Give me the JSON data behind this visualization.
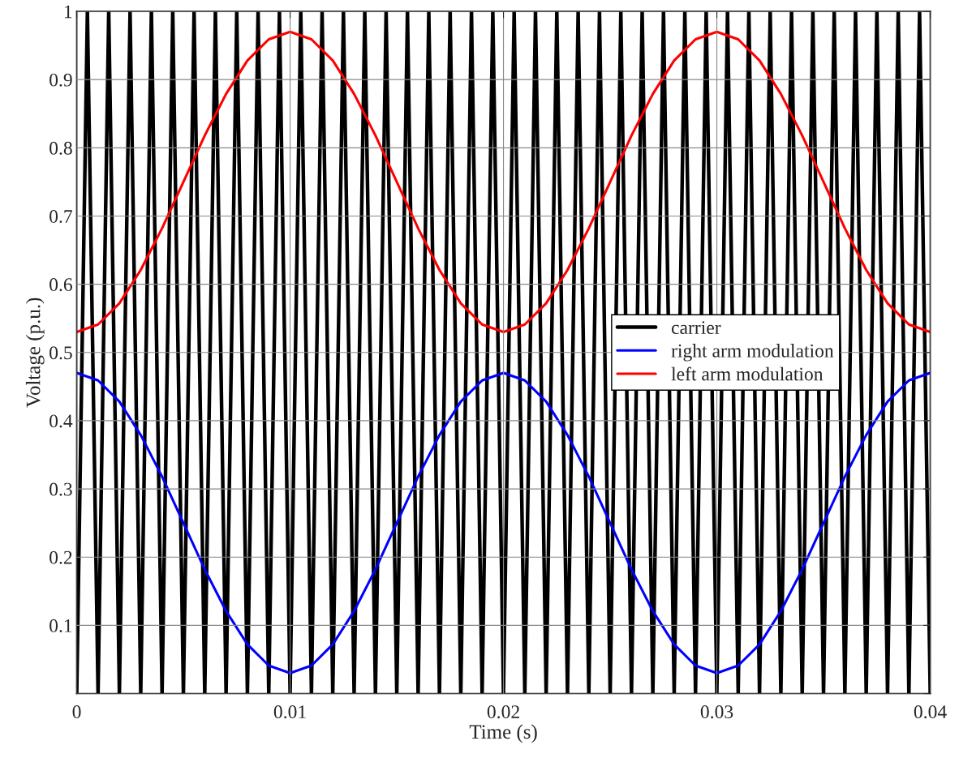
{
  "chart_data": {
    "type": "line",
    "xlabel": "Time (s)",
    "ylabel": "Voltage (p.u.)",
    "xlim": [
      0,
      0.04
    ],
    "xticks": [
      0,
      0.01,
      0.02,
      0.03,
      0.04
    ],
    "ylim": [
      0,
      1
    ],
    "yticks": [
      {
        "value": 0,
        "label": null
      },
      0.1,
      0.2,
      0.3,
      0.4,
      0.5,
      0.6,
      0.7,
      0.8,
      0.9,
      1
    ],
    "grid": true,
    "legend": "right",
    "marker": "none",
    "line_style": "solid",
    "series": [
      {
        "name": "carrier",
        "color": "#000000",
        "x": [
          0,
          0.0005,
          0.001,
          0.0015,
          0.002,
          0.0025,
          0.003,
          0.0035,
          0.004,
          0.0045,
          0.005,
          0.0055,
          0.006,
          0.0065,
          0.007,
          0.0075,
          0.008,
          0.0085,
          0.009,
          0.0095,
          0.01,
          0.0105,
          0.011,
          0.0115,
          0.012,
          0.0125,
          0.013,
          0.0135,
          0.014,
          0.0145,
          0.015,
          0.0155,
          0.016,
          0.0165,
          0.017,
          0.0175,
          0.018,
          0.0185,
          0.019,
          0.0195,
          0.02,
          0.0205,
          0.021,
          0.0215,
          0.022,
          0.0225,
          0.023,
          0.0235,
          0.024,
          0.0245,
          0.025,
          0.0255,
          0.026,
          0.0265,
          0.027,
          0.0275,
          0.028,
          0.0285,
          0.029,
          0.0295,
          0.03,
          0.0305,
          0.031,
          0.0315,
          0.032,
          0.0325,
          0.033,
          0.0335,
          0.034,
          0.0345,
          0.035,
          0.0355,
          0.036,
          0.0365,
          0.037,
          0.0375,
          0.038,
          0.0385,
          0.039,
          0.0395,
          0.04
        ],
        "values": [
          0,
          1,
          0,
          1,
          0,
          1,
          0,
          1,
          0,
          1,
          0,
          1,
          0,
          1,
          0,
          1,
          0,
          1,
          0,
          1,
          0,
          1,
          0,
          1,
          0,
          1,
          0,
          1,
          0,
          1,
          0,
          1,
          0,
          1,
          0,
          1,
          0,
          1,
          0,
          1,
          0,
          1,
          0,
          1,
          0,
          1,
          0,
          1,
          0,
          1,
          0,
          1,
          0,
          1,
          0,
          1,
          0,
          1,
          0,
          1,
          0,
          1,
          0,
          1,
          0,
          1,
          0,
          1,
          0,
          1,
          0,
          1,
          0,
          1,
          0,
          1,
          0,
          1,
          0,
          1,
          0
        ]
      },
      {
        "name": "right arm modulation",
        "color": "#0000ff",
        "x": [
          0,
          0.001,
          0.002,
          0.003,
          0.004,
          0.005,
          0.006,
          0.007,
          0.008,
          0.009,
          0.01,
          0.011,
          0.012,
          0.013,
          0.014,
          0.015,
          0.016,
          0.017,
          0.018,
          0.019,
          0.02,
          0.021,
          0.022,
          0.023,
          0.024,
          0.025,
          0.026,
          0.027,
          0.028,
          0.029,
          0.03,
          0.031,
          0.032,
          0.033,
          0.034,
          0.035,
          0.036,
          0.037,
          0.038,
          0.039,
          0.04
        ],
        "values": [
          0.47,
          0.459,
          0.428,
          0.379,
          0.318,
          0.25,
          0.182,
          0.121,
          0.072,
          0.041,
          0.03,
          0.041,
          0.072,
          0.121,
          0.182,
          0.25,
          0.318,
          0.379,
          0.428,
          0.459,
          0.47,
          0.459,
          0.428,
          0.379,
          0.318,
          0.25,
          0.182,
          0.121,
          0.072,
          0.041,
          0.03,
          0.041,
          0.072,
          0.121,
          0.182,
          0.25,
          0.318,
          0.379,
          0.428,
          0.459,
          0.47
        ]
      },
      {
        "name": "left arm modulation",
        "color": "#ff0000",
        "x": [
          0,
          0.001,
          0.002,
          0.003,
          0.004,
          0.005,
          0.006,
          0.007,
          0.008,
          0.009,
          0.01,
          0.011,
          0.012,
          0.013,
          0.014,
          0.015,
          0.016,
          0.017,
          0.018,
          0.019,
          0.02,
          0.021,
          0.022,
          0.023,
          0.024,
          0.025,
          0.026,
          0.027,
          0.028,
          0.029,
          0.03,
          0.031,
          0.032,
          0.033,
          0.034,
          0.035,
          0.036,
          0.037,
          0.038,
          0.039,
          0.04
        ],
        "values": [
          0.53,
          0.541,
          0.572,
          0.621,
          0.682,
          0.75,
          0.818,
          0.879,
          0.928,
          0.959,
          0.97,
          0.959,
          0.928,
          0.879,
          0.818,
          0.75,
          0.682,
          0.621,
          0.572,
          0.541,
          0.53,
          0.541,
          0.572,
          0.621,
          0.682,
          0.75,
          0.818,
          0.879,
          0.928,
          0.959,
          0.97,
          0.959,
          0.928,
          0.879,
          0.818,
          0.75,
          0.682,
          0.621,
          0.572,
          0.541,
          0.53
        ]
      }
    ]
  }
}
